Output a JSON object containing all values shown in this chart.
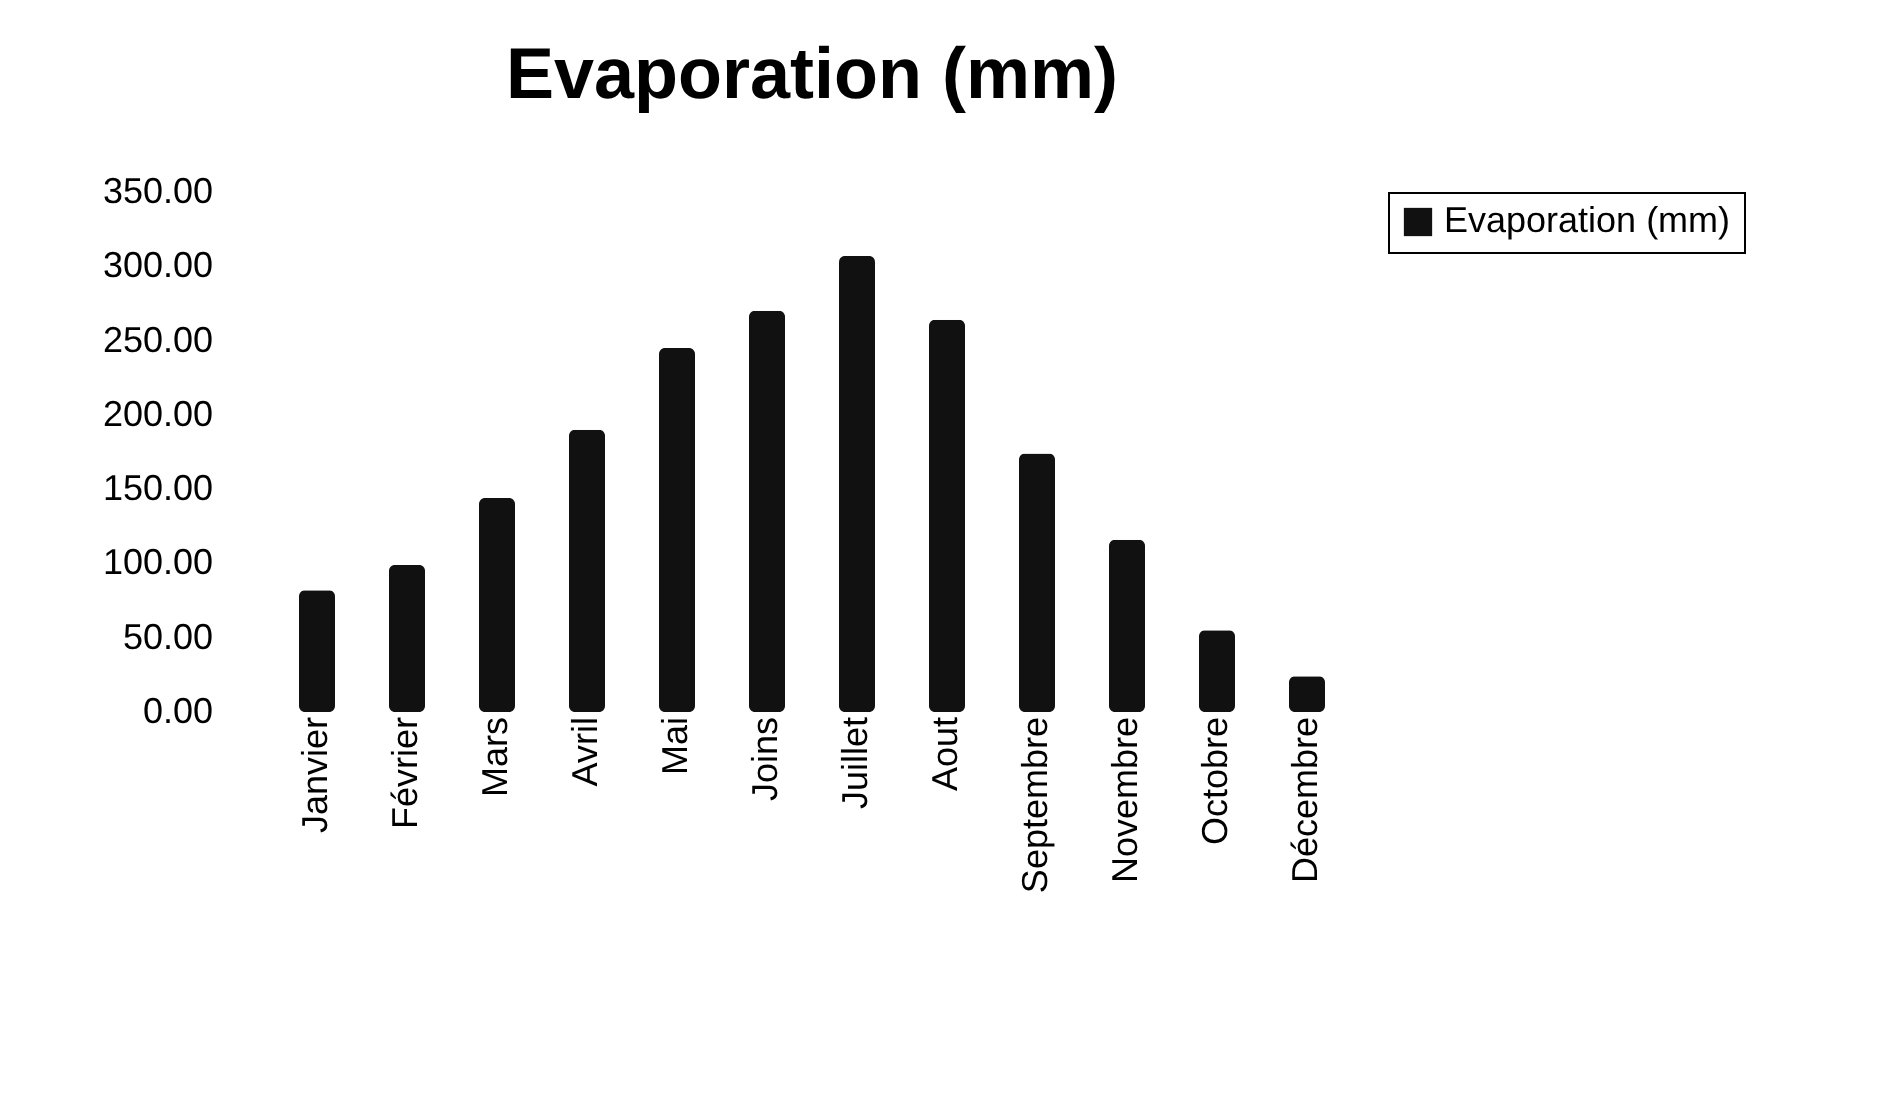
{
  "chart_data": {
    "type": "bar",
    "title": "Evaporation (mm)",
    "categories": [
      "Janvier",
      "Février",
      "Mars",
      "Avril",
      "Mai",
      "Joins",
      "Juillet",
      "Aout",
      "Septembre",
      "Novembre",
      "Octobre",
      "Décembre"
    ],
    "series": [
      {
        "name": "Evaporation (mm)",
        "color": "#111111",
        "values": [
          82,
          99,
          144,
          190,
          245,
          270,
          307,
          264,
          174,
          116,
          55,
          24
        ]
      }
    ],
    "ylim": [
      0,
      350
    ],
    "yticks": [
      {
        "value": 0,
        "label": "0.00"
      },
      {
        "value": 50,
        "label": "50.00"
      },
      {
        "value": 100,
        "label": "100.00"
      },
      {
        "value": 150,
        "label": "150.00"
      },
      {
        "value": 200,
        "label": "200.00"
      },
      {
        "value": 250,
        "label": "250.00"
      },
      {
        "value": 300,
        "label": "300.00"
      },
      {
        "value": 350,
        "label": "350.00"
      }
    ],
    "grid": false,
    "legend": "right"
  }
}
